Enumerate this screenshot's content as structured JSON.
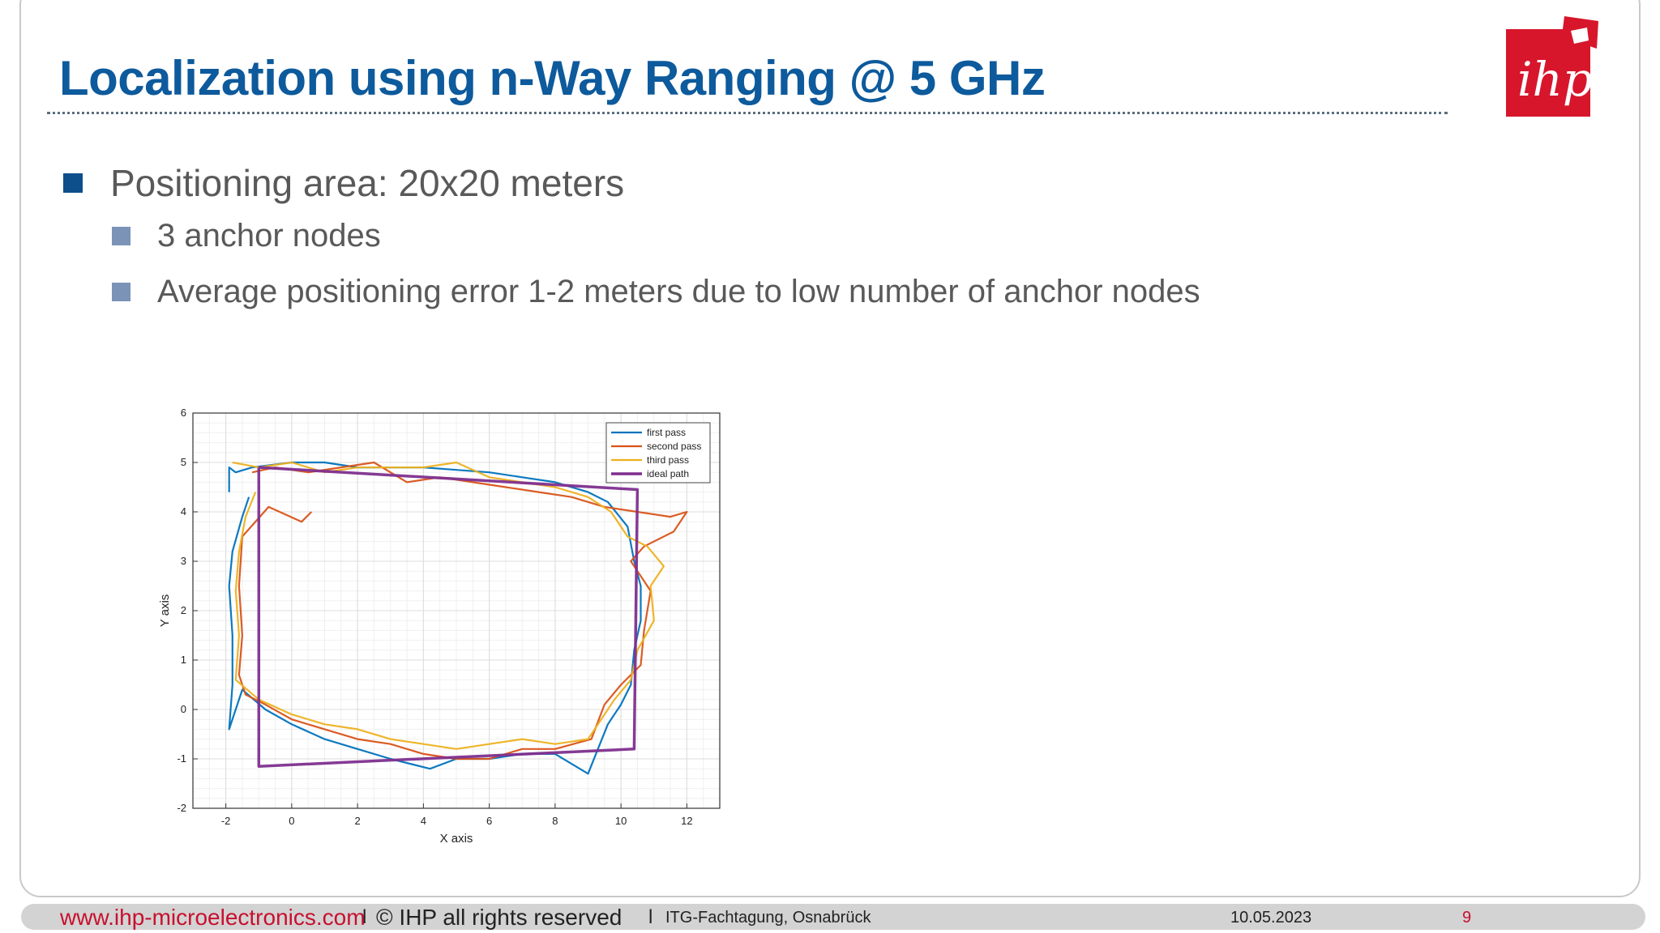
{
  "slide": {
    "title": "Localization using n-Way Ranging @ 5 GHz",
    "bullets": {
      "main": "Positioning area: 20x20 meters",
      "sub": [
        "3 anchor nodes",
        "Average positioning error 1-2 meters due to low number of anchor nodes"
      ]
    }
  },
  "logo": {
    "text": "ihp",
    "color": "#d7162c"
  },
  "footer": {
    "url": "www.ihp-microelectronics.com",
    "separator": "l",
    "copyright": "© IHP all rights reserved",
    "event": "ITG-Fachtagung, Osnabrück",
    "date": "10.05.2023",
    "page": "9"
  },
  "colors": {
    "title": "#0d5a9c",
    "accent_red": "#c8102e",
    "text_gray": "#595959"
  },
  "chart_data": {
    "type": "line",
    "xlabel": "X axis",
    "ylabel": "Y axis",
    "xlim": [
      -3,
      13
    ],
    "ylim": [
      -2,
      6
    ],
    "xticks": [
      "-2",
      "0",
      "2",
      "4",
      "6",
      "8",
      "10",
      "12"
    ],
    "yticks": [
      "-2",
      "-1",
      "0",
      "1",
      "2",
      "3",
      "4",
      "5",
      "6"
    ],
    "grid": true,
    "minor_grid": true,
    "legend_position": "top-right",
    "series": [
      {
        "name": "first pass",
        "color": "#0072bd",
        "points": [
          [
            -1.9,
            4.4
          ],
          [
            -1.9,
            4.9
          ],
          [
            -1.7,
            4.8
          ],
          [
            -1.2,
            4.9
          ],
          [
            0,
            5.0
          ],
          [
            1,
            5.0
          ],
          [
            2,
            4.9
          ],
          [
            3,
            4.9
          ],
          [
            4,
            4.9
          ],
          [
            5,
            4.85
          ],
          [
            6,
            4.8
          ],
          [
            7,
            4.7
          ],
          [
            8,
            4.6
          ],
          [
            9,
            4.4
          ],
          [
            9.6,
            4.2
          ],
          [
            10.2,
            3.7
          ],
          [
            10.4,
            3.0
          ],
          [
            10.6,
            2.5
          ],
          [
            10.6,
            1.8
          ],
          [
            10.4,
            1.2
          ],
          [
            10.3,
            0.5
          ],
          [
            10.0,
            0.1
          ],
          [
            9.6,
            -0.3
          ],
          [
            9.3,
            -0.8
          ],
          [
            9.0,
            -1.3
          ],
          [
            8,
            -0.9
          ],
          [
            7,
            -0.9
          ],
          [
            6,
            -1.0
          ],
          [
            5,
            -1.0
          ],
          [
            4.2,
            -1.2
          ],
          [
            3,
            -1.0
          ],
          [
            2,
            -0.8
          ],
          [
            1,
            -0.6
          ],
          [
            0,
            -0.3
          ],
          [
            -0.8,
            0.0
          ],
          [
            -1.5,
            0.4
          ],
          [
            -1.9,
            -0.4
          ],
          [
            -1.8,
            0.5
          ],
          [
            -1.8,
            1.5
          ],
          [
            -1.9,
            2.5
          ],
          [
            -1.8,
            3.2
          ],
          [
            -1.5,
            3.9
          ],
          [
            -1.3,
            4.3
          ]
        ]
      },
      {
        "name": "second pass",
        "color": "#d95319",
        "points": [
          [
            -1.2,
            4.8
          ],
          [
            -0.5,
            4.9
          ],
          [
            0.5,
            4.8
          ],
          [
            1.5,
            4.9
          ],
          [
            2.5,
            5.0
          ],
          [
            3.5,
            4.6
          ],
          [
            4.5,
            4.7
          ],
          [
            5.5,
            4.6
          ],
          [
            6.5,
            4.5
          ],
          [
            7.5,
            4.4
          ],
          [
            8.5,
            4.3
          ],
          [
            9.5,
            4.1
          ],
          [
            10.5,
            4.0
          ],
          [
            11.5,
            3.9
          ],
          [
            12.0,
            4.0
          ],
          [
            11.6,
            3.6
          ],
          [
            10.7,
            3.3
          ],
          [
            10.3,
            3.0
          ],
          [
            10.9,
            2.4
          ],
          [
            10.7,
            1.6
          ],
          [
            10.6,
            0.9
          ],
          [
            10.0,
            0.5
          ],
          [
            9.5,
            0.1
          ],
          [
            9.1,
            -0.6
          ],
          [
            8,
            -0.8
          ],
          [
            7,
            -0.8
          ],
          [
            6,
            -1.0
          ],
          [
            5,
            -1.0
          ],
          [
            4,
            -0.9
          ],
          [
            3,
            -0.7
          ],
          [
            2,
            -0.6
          ],
          [
            1,
            -0.4
          ],
          [
            0,
            -0.2
          ],
          [
            -0.8,
            0.1
          ],
          [
            -1.4,
            0.3
          ],
          [
            -1.6,
            0.7
          ],
          [
            -1.5,
            1.5
          ],
          [
            -1.6,
            2.5
          ],
          [
            -1.5,
            3.5
          ],
          [
            -0.7,
            4.1
          ],
          [
            0.3,
            3.8
          ],
          [
            0.6,
            4.0
          ]
        ]
      },
      {
        "name": "third pass",
        "color": "#edb120",
        "points": [
          [
            -1.8,
            5.0
          ],
          [
            -1.0,
            4.9
          ],
          [
            0,
            5.0
          ],
          [
            1,
            4.8
          ],
          [
            2,
            4.9
          ],
          [
            3,
            4.9
          ],
          [
            4,
            4.9
          ],
          [
            5,
            5.0
          ],
          [
            6,
            4.7
          ],
          [
            7,
            4.6
          ],
          [
            8,
            4.5
          ],
          [
            9,
            4.3
          ],
          [
            9.7,
            4.0
          ],
          [
            10.2,
            3.5
          ],
          [
            10.8,
            3.3
          ],
          [
            11.3,
            2.9
          ],
          [
            10.9,
            2.5
          ],
          [
            11.0,
            1.8
          ],
          [
            10.5,
            1.2
          ],
          [
            10.3,
            0.6
          ],
          [
            9.8,
            0.2
          ],
          [
            9.4,
            -0.2
          ],
          [
            9.0,
            -0.6
          ],
          [
            8,
            -0.7
          ],
          [
            7,
            -0.6
          ],
          [
            6,
            -0.7
          ],
          [
            5,
            -0.8
          ],
          [
            4,
            -0.7
          ],
          [
            3,
            -0.6
          ],
          [
            2,
            -0.4
          ],
          [
            1,
            -0.3
          ],
          [
            0,
            -0.1
          ],
          [
            -1.0,
            0.2
          ],
          [
            -1.7,
            0.6
          ],
          [
            -1.6,
            1.5
          ],
          [
            -1.7,
            2.4
          ],
          [
            -1.6,
            3.2
          ],
          [
            -1.4,
            3.9
          ],
          [
            -1.1,
            4.4
          ]
        ]
      },
      {
        "name": "ideal path",
        "color": "#7e2f8e",
        "points": [
          [
            -1.0,
            4.9
          ],
          [
            10.5,
            4.45
          ],
          [
            10.4,
            -0.8
          ],
          [
            -1.0,
            -1.15
          ],
          [
            -1.0,
            4.9
          ]
        ]
      }
    ]
  }
}
